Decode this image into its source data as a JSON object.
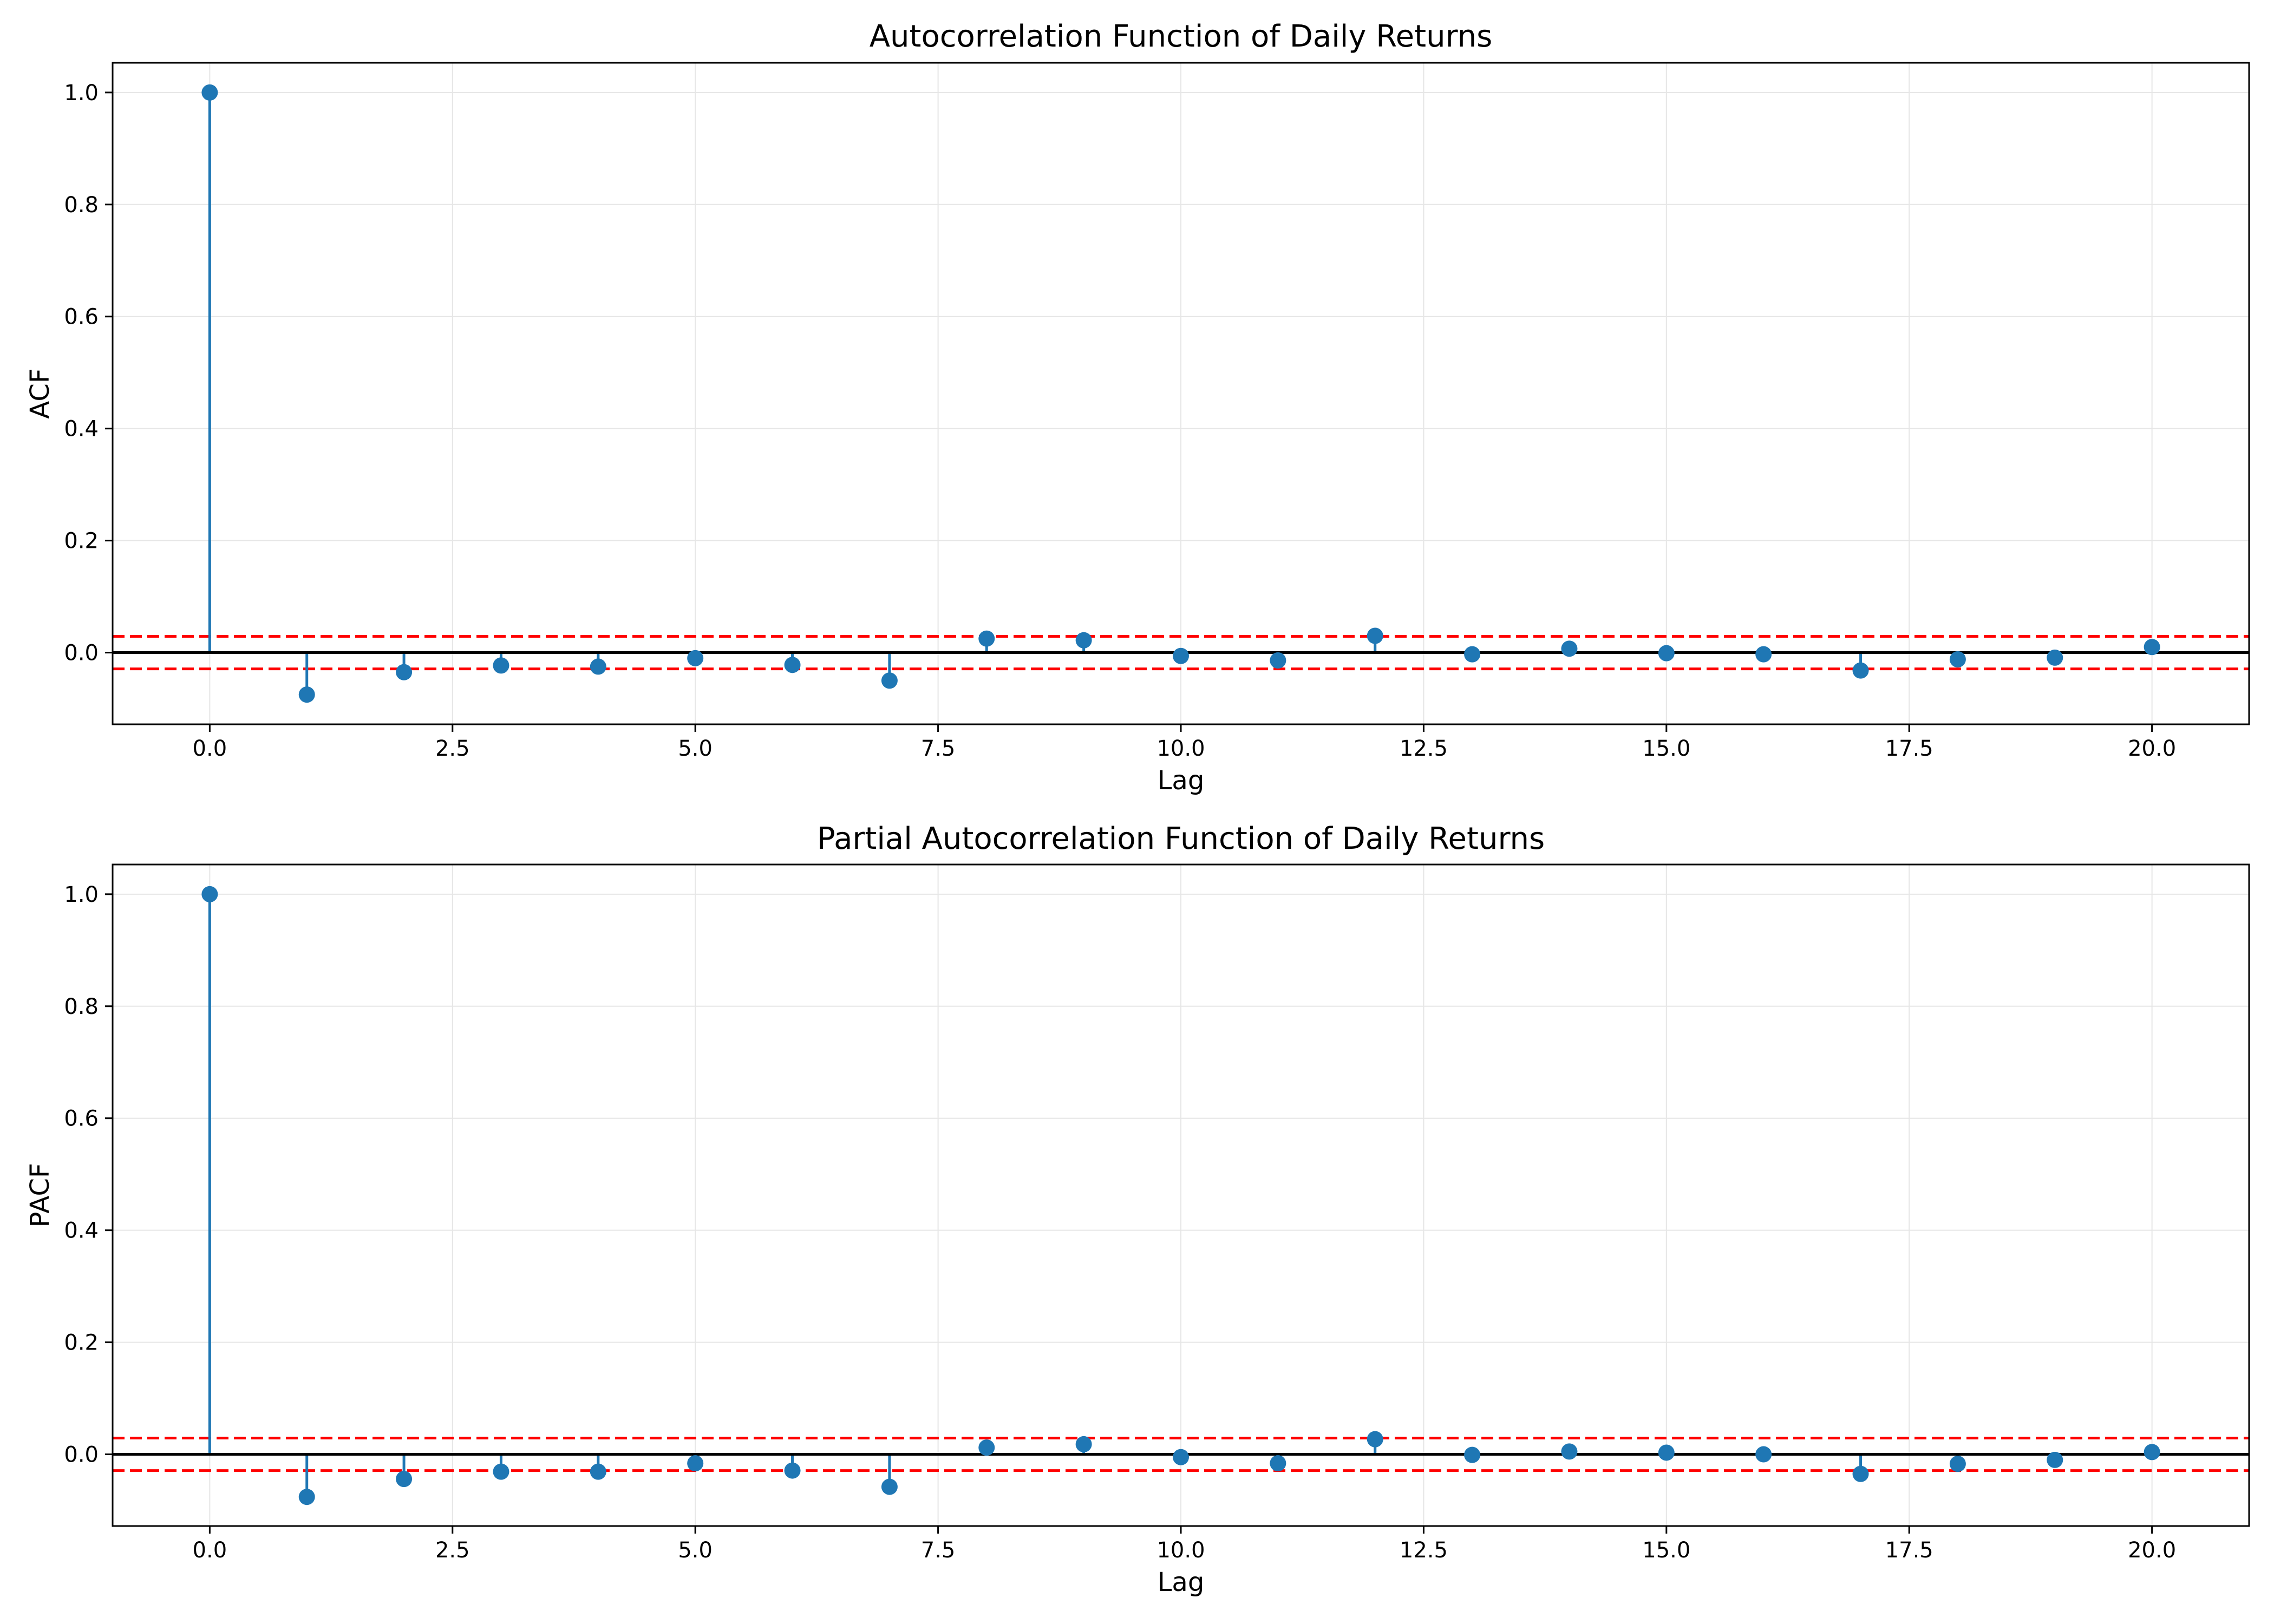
{
  "colors": {
    "stem": "#1f77b4",
    "marker": "#1f77b4",
    "baseline": "#000000",
    "confidence": "#ff0000",
    "grid": "#e6e6e6",
    "axes": "#000000"
  },
  "chart_data": [
    {
      "type": "stem",
      "title": "Autocorrelation Function of Daily Returns",
      "xlabel": "Lag",
      "ylabel": "ACF",
      "xlim": [
        -1,
        21
      ],
      "ylim": [
        -0.128,
        1.053
      ],
      "xticks": [
        0.0,
        2.5,
        5.0,
        7.5,
        10.0,
        12.5,
        15.0,
        17.5,
        20.0
      ],
      "xtick_labels": [
        "0.0",
        "2.5",
        "5.0",
        "7.5",
        "10.0",
        "12.5",
        "15.0",
        "17.5",
        "20.0"
      ],
      "yticks": [
        0.0,
        0.2,
        0.4,
        0.6,
        0.8,
        1.0
      ],
      "ytick_labels": [
        "0.0",
        "0.2",
        "0.4",
        "0.6",
        "0.8",
        "1.0"
      ],
      "grid": true,
      "baseline": 0,
      "confidence_band": [
        -0.029,
        0.029
      ],
      "x": [
        0,
        1,
        2,
        3,
        4,
        5,
        6,
        7,
        8,
        9,
        10,
        11,
        12,
        13,
        14,
        15,
        16,
        17,
        18,
        19,
        20
      ],
      "values": [
        1.0,
        -0.075,
        -0.035,
        -0.023,
        -0.025,
        -0.01,
        -0.022,
        -0.05,
        0.025,
        0.022,
        -0.006,
        -0.014,
        0.03,
        -0.003,
        0.007,
        -0.001,
        -0.003,
        -0.032,
        -0.012,
        -0.009,
        0.01
      ]
    },
    {
      "type": "stem",
      "title": "Partial Autocorrelation Function of Daily Returns",
      "xlabel": "Lag",
      "ylabel": "PACF",
      "xlim": [
        -1,
        21
      ],
      "ylim": [
        -0.128,
        1.053
      ],
      "xticks": [
        0.0,
        2.5,
        5.0,
        7.5,
        10.0,
        12.5,
        15.0,
        17.5,
        20.0
      ],
      "xtick_labels": [
        "0.0",
        "2.5",
        "5.0",
        "7.5",
        "10.0",
        "12.5",
        "15.0",
        "17.5",
        "20.0"
      ],
      "yticks": [
        0.0,
        0.2,
        0.4,
        0.6,
        0.8,
        1.0
      ],
      "ytick_labels": [
        "0.0",
        "0.2",
        "0.4",
        "0.6",
        "0.8",
        "1.0"
      ],
      "grid": true,
      "baseline": 0,
      "confidence_band": [
        -0.029,
        0.029
      ],
      "x": [
        0,
        1,
        2,
        3,
        4,
        5,
        6,
        7,
        8,
        9,
        10,
        11,
        12,
        13,
        14,
        15,
        16,
        17,
        18,
        19,
        20
      ],
      "values": [
        1.0,
        -0.076,
        -0.044,
        -0.031,
        -0.031,
        -0.016,
        -0.029,
        -0.058,
        0.012,
        0.018,
        -0.005,
        -0.016,
        0.027,
        -0.001,
        0.005,
        0.003,
        0.0,
        -0.035,
        -0.017,
        -0.01,
        0.004
      ]
    }
  ]
}
